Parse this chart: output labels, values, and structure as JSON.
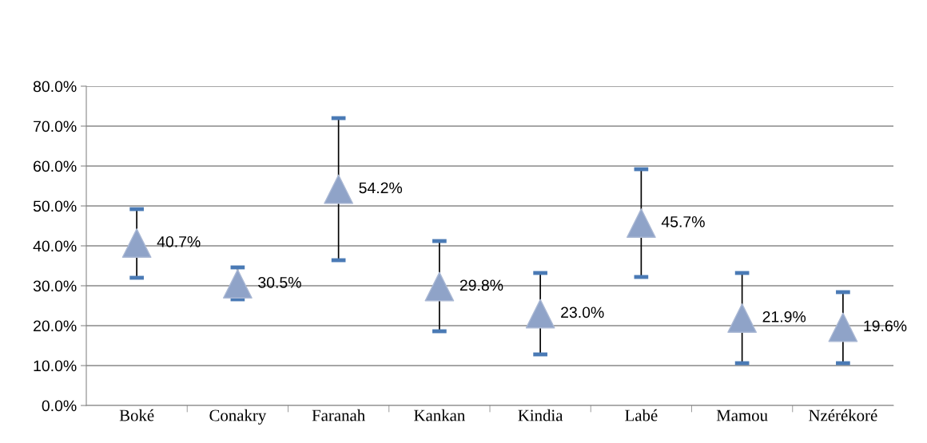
{
  "chart_data": {
    "type": "scatter",
    "categories": [
      "Boké",
      "Conakry",
      "Faranah",
      "Kankan",
      "Kindia",
      "Labé",
      "Mamou",
      "Nzérékoré"
    ],
    "values": [
      40.7,
      30.5,
      54.2,
      29.8,
      23.0,
      45.7,
      21.9,
      19.6
    ],
    "errors": [
      [
        32.0,
        49.2
      ],
      [
        26.6,
        34.6
      ],
      [
        36.4,
        72.0
      ],
      [
        18.6,
        41.2
      ],
      [
        12.8,
        33.2
      ],
      [
        32.2,
        59.2
      ],
      [
        10.6,
        33.2
      ],
      [
        10.6,
        28.4
      ]
    ],
    "value_labels": [
      "40.7%",
      "30.5%",
      "54.2%",
      "29.8%",
      "23.0%",
      "45.7%",
      "21.9%",
      "19.6%"
    ],
    "color": "#8fa3c8",
    "marker": "triangle",
    "ylim": [
      0,
      80
    ],
    "yticks": [
      {
        "value": 0,
        "label": "0.0%"
      },
      {
        "value": 10,
        "label": "10.0%"
      },
      {
        "value": 20,
        "label": "20.0%"
      },
      {
        "value": 30,
        "label": "30.0%"
      },
      {
        "value": 40,
        "label": "40.0%"
      },
      {
        "value": 50,
        "label": "50.0%"
      },
      {
        "value": 60,
        "label": "60.0%"
      },
      {
        "value": 70,
        "label": "70.0%"
      },
      {
        "value": 80,
        "label": "80.0%"
      }
    ],
    "grid": "y"
  }
}
